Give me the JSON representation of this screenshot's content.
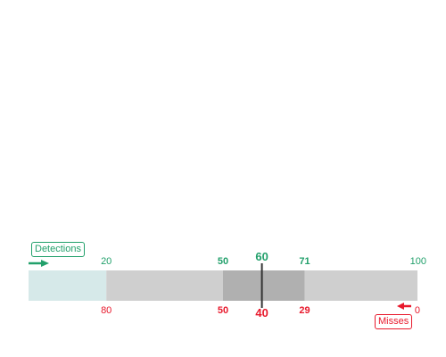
{
  "colors": {
    "detections": "#22a06b",
    "misses": "#e8192c",
    "track": "#cfcfcf",
    "low_zone": "#d6e9e9",
    "mid_zone": "#b0b0b0",
    "marker": "#333333"
  },
  "icons": {
    "detections_arrow": "arrow-right-icon",
    "misses_arrow": "arrow-left-icon"
  },
  "chart_data": {
    "type": "bullet",
    "range": [
      0,
      100
    ],
    "detections": {
      "label": "Detections",
      "ticks": [
        {
          "value": 20,
          "label": "20"
        },
        {
          "value": 50,
          "label": "50",
          "bold": true
        },
        {
          "value": 71,
          "label": "71",
          "bold": true
        },
        {
          "value": 100,
          "label": "100"
        }
      ],
      "marker": {
        "value": 60,
        "label": "60"
      }
    },
    "misses": {
      "label": "Misses",
      "ticks": [
        {
          "value": 20,
          "label": "80"
        },
        {
          "value": 50,
          "label": "50",
          "bold": true
        },
        {
          "value": 71,
          "label": "29",
          "bold": true
        },
        {
          "value": 100,
          "label": "0"
        }
      ],
      "marker": {
        "value": 60,
        "label": "40"
      }
    },
    "bands": [
      {
        "from": 0,
        "to": 20,
        "color": "#d6e9e9"
      },
      {
        "from": 20,
        "to": 50,
        "color": "#cfcfcf"
      },
      {
        "from": 50,
        "to": 71,
        "color": "#b0b0b0"
      },
      {
        "from": 71,
        "to": 100,
        "color": "#cfcfcf"
      }
    ]
  }
}
